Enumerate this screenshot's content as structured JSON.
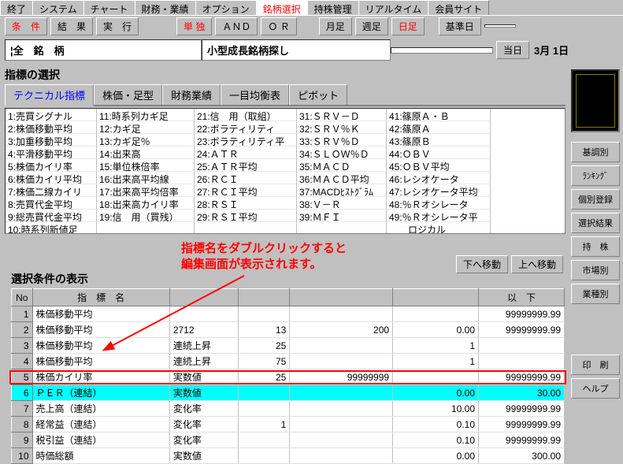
{
  "top_tabs": [
    "終了",
    "システム",
    "チャート",
    "財務・業績",
    "オプション",
    "銘柄選択",
    "持株管理",
    "リアルタイム",
    "会員サイト"
  ],
  "top_tab_active": 5,
  "filter": {
    "cond": "条　件",
    "result": "結　果",
    "exec": "実　行",
    "single": "単 独",
    "and": "ＡＮＤ",
    "or": "Ｏ Ｒ",
    "monthly": "月足",
    "weekly": "週足",
    "daily": "日足",
    "base": "基準日",
    "base_val": ""
  },
  "name_bar": {
    "all": "¦全　銘　柄",
    "plan": "小型成長銘柄探し",
    "today": "当日",
    "date": "3月 1日"
  },
  "panel": {
    "title": "指標の選択",
    "sub_tabs": [
      "テクニカル指標",
      "株価・足型",
      "財務業績",
      "一目均衡表",
      "ピボット"
    ],
    "grid": [
      [
        "1:売買シグナル",
        "11:時系列カギ足",
        "21:信　用（取組）",
        "31:ＳＲＶ－Ｄ",
        "41:篠原Ａ・Ｂ"
      ],
      [
        "2:株価移動平均",
        "12:カギ足",
        "22:ボラティリティ",
        "32:ＳＲＶ％Ｋ",
        "42:篠原Ａ"
      ],
      [
        "3:加重移動平均",
        "13:カギ足％",
        "23:ボラティリティ平",
        "33:ＳＲＶ％Ｄ",
        "43:篠原Ｂ"
      ],
      [
        "4:平滑移動平均",
        "14:出来高",
        "24:ＡＴＲ",
        "34:ＳＬＯＷ％Ｄ",
        "44:ＯＢＶ"
      ],
      [
        "5:株価カイリ率",
        "15:単位株倍率",
        "25:ＡＴＲ平均",
        "35:ＭＡＣＤ",
        "45:ＯＢＶ平均"
      ],
      [
        "6:株価カイリ平均",
        "16:出来高平均線",
        "26:ＲＣＩ",
        "36:ＭＡＣＤ平均",
        "46:レシオケータ"
      ],
      [
        "7:株価二線カイリ",
        "17:出来高平均倍率",
        "27:ＲＣＩ平均",
        "37:MACDﾋｽﾄｸﾞﾗﾑ",
        "47:レシオケータ平均"
      ],
      [
        "8:売買代金平均",
        "18:出来高カイリ率",
        "28:ＲＳＩ",
        "38:Ｖ－Ｒ",
        "48:％Ｒオシレータ"
      ],
      [
        "9:総売買代金平均",
        "19:信　用（買残）",
        "29:ＲＳＩ平均",
        "39:ＭＦＩ",
        "49:％Ｒオシレータ平"
      ],
      [
        "10:時系列新値足",
        "",
        "",
        "",
        "　　ロジカル"
      ]
    ]
  },
  "move": {
    "up": "上へ移動",
    "down": "下へ移動"
  },
  "msg": {
    "l1": "指標名をダブルクリックすると",
    "l2": "編集画面が表示されます。"
  },
  "cond": {
    "title": "選択条件の表示",
    "headers": [
      "No",
      "指　標　名",
      "",
      "",
      "",
      "",
      "以　下"
    ],
    "rows": [
      {
        "no": "1",
        "name": "株価移動平均",
        "c1": "",
        "c2": "",
        "c3": "",
        "lo": "",
        "hi": "99999999.99"
      },
      {
        "no": "2",
        "name": "株価移動平均",
        "c1": "2712",
        "c2": "13",
        "c3": "200",
        "lo": "0.00",
        "hi": "99999999.99"
      },
      {
        "no": "3",
        "name": "株価移動平均",
        "c1": "連続上昇",
        "c2": "25",
        "c3": "",
        "lo": "1",
        "hi": ""
      },
      {
        "no": "4",
        "name": "株価移動平均",
        "c1": "連続上昇",
        "c2": "75",
        "c3": "",
        "lo": "1",
        "hi": ""
      },
      {
        "no": "5",
        "name": "株価カイリ率",
        "c1": "実数値",
        "c2": "25",
        "c3": "99999999",
        "lo": "",
        "hi": "99999999.99"
      },
      {
        "no": "6",
        "name": "ＰＥＲ（連結）",
        "c1": "実数値",
        "c2": "",
        "c3": "",
        "lo": "0.00",
        "hi": "30.00",
        "hl": true
      },
      {
        "no": "7",
        "name": "売上高（連結）",
        "c1": "変化率",
        "c2": "",
        "c3": "",
        "lo": "10.00",
        "hi": "99999999.99"
      },
      {
        "no": "8",
        "name": "経常益（連結）",
        "c1": "変化率",
        "c2": "1",
        "c3": "",
        "lo": "0.10",
        "hi": "99999999.99"
      },
      {
        "no": "9",
        "name": "税引益（連結）",
        "c1": "変化率",
        "c2": "",
        "c3": "",
        "lo": "0.10",
        "hi": "99999999.99"
      },
      {
        "no": "10",
        "name": "時価総額",
        "c1": "実数値",
        "c2": "",
        "c3": "",
        "lo": "0.00",
        "hi": "300.00"
      }
    ]
  },
  "sidebar": {
    "buttons": [
      "基調別",
      "ﾗﾝｷﾝｸﾞ",
      "個別登録",
      "選択結果",
      "持　株",
      "市場別",
      "業種別"
    ],
    "print": "印　刷",
    "help": "ヘルプ"
  },
  "colors": {
    "highlight": "#00ffff",
    "redbox": "#ff0000",
    "msg": "#ff0000"
  }
}
